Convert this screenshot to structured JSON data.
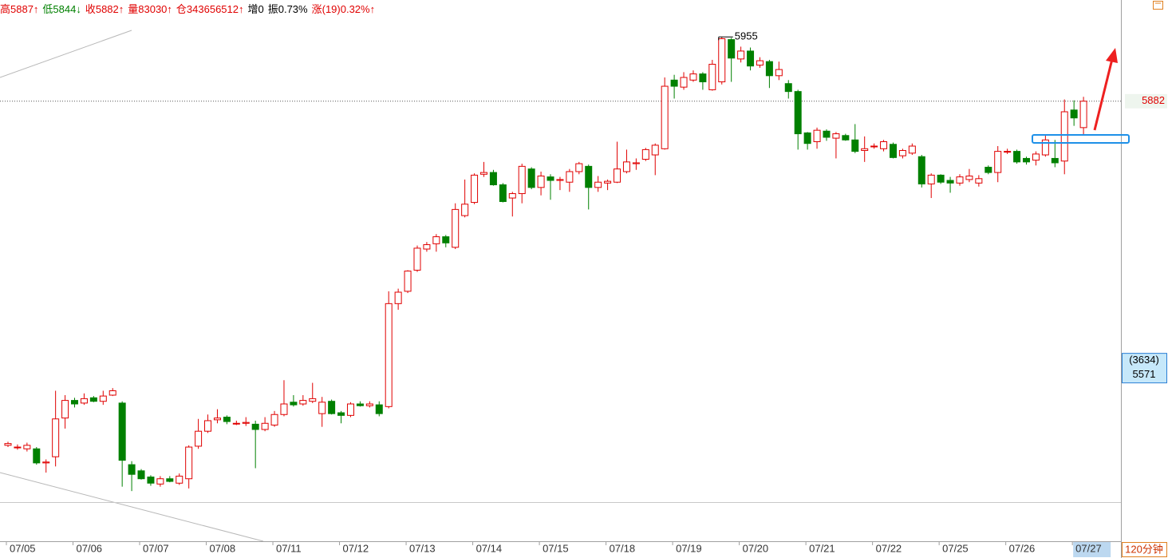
{
  "chart_data": {
    "type": "candlestick",
    "header": [
      {
        "text": "高5887↑",
        "color": "#e00000"
      },
      {
        "text": "低5844↓",
        "color": "#008000"
      },
      {
        "text": "收5882↑",
        "color": "#e00000"
      },
      {
        "text": "量83030↑",
        "color": "#e00000"
      },
      {
        "text": "仓343656512↑",
        "color": "#e00000"
      },
      {
        "text": "增0",
        "color": "#000000"
      },
      {
        "text": "振0.73%",
        "color": "#000000"
      },
      {
        "text": "涨(19)0.32%↑",
        "color": "#e00000"
      }
    ],
    "period_label": "120分钟",
    "up_color": "#e00000",
    "down_color": "#008000",
    "ylim": [
      5382,
      5997
    ],
    "last_price": 5882,
    "cursor_box": {
      "count_label": "(3634)",
      "price": 5571
    },
    "level_line": 5426,
    "categories": [
      "07/05",
      null,
      null,
      null,
      null,
      null,
      null,
      "07/06",
      null,
      null,
      null,
      null,
      null,
      null,
      "07/07",
      null,
      null,
      null,
      null,
      null,
      null,
      "07/08",
      null,
      null,
      null,
      null,
      null,
      null,
      "07/11",
      null,
      null,
      null,
      null,
      null,
      null,
      "07/12",
      null,
      null,
      null,
      null,
      null,
      null,
      "07/13",
      null,
      null,
      null,
      null,
      null,
      null,
      "07/14",
      null,
      null,
      null,
      null,
      null,
      null,
      "07/15",
      null,
      null,
      null,
      null,
      null,
      null,
      "07/18",
      null,
      null,
      null,
      null,
      null,
      null,
      "07/19",
      null,
      null,
      null,
      null,
      null,
      null,
      "07/20",
      null,
      null,
      null,
      null,
      null,
      null,
      "07/21",
      null,
      null,
      null,
      null,
      null,
      null,
      "07/22",
      null,
      null,
      null,
      null,
      null,
      null,
      "07/25",
      null,
      null,
      null,
      null,
      null,
      null,
      "07/26",
      null,
      null,
      null,
      null,
      null,
      null,
      "07/27",
      null
    ],
    "candles": [
      [
        5491,
        5495,
        5489,
        5493
      ],
      [
        5489,
        5492,
        5486,
        5489
      ],
      [
        5487,
        5494,
        5484,
        5491
      ],
      [
        5487,
        5489,
        5469,
        5471
      ],
      [
        5471,
        5475,
        5460,
        5472
      ],
      [
        5478,
        5553,
        5467,
        5521
      ],
      [
        5522,
        5548,
        5510,
        5542
      ],
      [
        5542,
        5545,
        5534,
        5538
      ],
      [
        5539,
        5550,
        5537,
        5544
      ],
      [
        5545,
        5547,
        5540,
        5541
      ],
      [
        5541,
        5553,
        5537,
        5547
      ],
      [
        5548,
        5556,
        5547,
        5553
      ],
      [
        5539,
        5541,
        5444,
        5474
      ],
      [
        5469,
        5473,
        5439,
        5458
      ],
      [
        5462,
        5464,
        5452,
        5453
      ],
      [
        5455,
        5457,
        5445,
        5448
      ],
      [
        5447,
        5456,
        5444,
        5453
      ],
      [
        5453,
        5456,
        5449,
        5450
      ],
      [
        5448,
        5459,
        5446,
        5456
      ],
      [
        5453,
        5491,
        5442,
        5489
      ],
      [
        5490,
        5521,
        5487,
        5507
      ],
      [
        5507,
        5526,
        5505,
        5519
      ],
      [
        5520,
        5532,
        5516,
        5522
      ],
      [
        5523,
        5525,
        5515,
        5518
      ],
      [
        5516,
        5519,
        5514,
        5516
      ],
      [
        5516,
        5523,
        5513,
        5517
      ],
      [
        5515,
        5519,
        5465,
        5509
      ],
      [
        5509,
        5523,
        5507,
        5516
      ],
      [
        5514,
        5530,
        5512,
        5526
      ],
      [
        5526,
        5565,
        5524,
        5538
      ],
      [
        5540,
        5548,
        5535,
        5537
      ],
      [
        5538,
        5548,
        5536,
        5542
      ],
      [
        5541,
        5562,
        5539,
        5544
      ],
      [
        5527,
        5546,
        5512,
        5540
      ],
      [
        5541,
        5543,
        5526,
        5527
      ],
      [
        5528,
        5530,
        5516,
        5525
      ],
      [
        5525,
        5540,
        5523,
        5538
      ],
      [
        5538,
        5541,
        5535,
        5536
      ],
      [
        5536,
        5541,
        5534,
        5538
      ],
      [
        5537,
        5541,
        5524,
        5527
      ],
      [
        5535,
        5666,
        5533,
        5652
      ],
      [
        5652,
        5669,
        5645,
        5665
      ],
      [
        5666,
        5690,
        5664,
        5689
      ],
      [
        5690,
        5718,
        5688,
        5715
      ],
      [
        5714,
        5722,
        5711,
        5719
      ],
      [
        5720,
        5731,
        5711,
        5728
      ],
      [
        5728,
        5730,
        5716,
        5721
      ],
      [
        5716,
        5766,
        5714,
        5759
      ],
      [
        5752,
        5793,
        5750,
        5765
      ],
      [
        5767,
        5800,
        5765,
        5798
      ],
      [
        5799,
        5813,
        5796,
        5801
      ],
      [
        5801,
        5804,
        5786,
        5787
      ],
      [
        5787,
        5789,
        5767,
        5768
      ],
      [
        5772,
        5779,
        5751,
        5777
      ],
      [
        5777,
        5811,
        5766,
        5808
      ],
      [
        5805,
        5807,
        5782,
        5784
      ],
      [
        5784,
        5802,
        5775,
        5797
      ],
      [
        5796,
        5799,
        5770,
        5792
      ],
      [
        5792,
        5796,
        5781,
        5793
      ],
      [
        5790,
        5805,
        5779,
        5802
      ],
      [
        5802,
        5813,
        5799,
        5811
      ],
      [
        5808,
        5810,
        5759,
        5784
      ],
      [
        5784,
        5797,
        5779,
        5790
      ],
      [
        5789,
        5793,
        5781,
        5791
      ],
      [
        5790,
        5836,
        5789,
        5805
      ],
      [
        5802,
        5827,
        5800,
        5813
      ],
      [
        5811,
        5817,
        5804,
        5812
      ],
      [
        5816,
        5829,
        5814,
        5827
      ],
      [
        5821,
        5834,
        5798,
        5832
      ],
      [
        5828,
        5909,
        5827,
        5899
      ],
      [
        5906,
        5912,
        5885,
        5899
      ],
      [
        5898,
        5915,
        5895,
        5909
      ],
      [
        5906,
        5917,
        5904,
        5913
      ],
      [
        5913,
        5915,
        5895,
        5904
      ],
      [
        5895,
        5929,
        5894,
        5924
      ],
      [
        5904,
        5955,
        5901,
        5953
      ],
      [
        5952,
        5954,
        5904,
        5931
      ],
      [
        5930,
        5944,
        5926,
        5939
      ],
      [
        5939,
        5943,
        5917,
        5922
      ],
      [
        5923,
        5932,
        5920,
        5928
      ],
      [
        5927,
        5929,
        5897,
        5911
      ],
      [
        5911,
        5927,
        5906,
        5918
      ],
      [
        5902,
        5906,
        5885,
        5893
      ],
      [
        5893,
        5895,
        5827,
        5845
      ],
      [
        5846,
        5847,
        5827,
        5834
      ],
      [
        5836,
        5852,
        5828,
        5849
      ],
      [
        5848,
        5850,
        5837,
        5841
      ],
      [
        5840,
        5847,
        5817,
        5845
      ],
      [
        5843,
        5845,
        5837,
        5838
      ],
      [
        5838,
        5856,
        5823,
        5825
      ],
      [
        5826,
        5842,
        5813,
        5828
      ],
      [
        5831,
        5834,
        5828,
        5831
      ],
      [
        5828,
        5838,
        5825,
        5836
      ],
      [
        5833,
        5835,
        5817,
        5818
      ],
      [
        5820,
        5828,
        5817,
        5826
      ],
      [
        5823,
        5834,
        5821,
        5831
      ],
      [
        5819,
        5821,
        5784,
        5788
      ],
      [
        5788,
        5800,
        5772,
        5798
      ],
      [
        5798,
        5799,
        5788,
        5790
      ],
      [
        5792,
        5796,
        5778,
        5789
      ],
      [
        5789,
        5799,
        5786,
        5796
      ],
      [
        5793,
        5805,
        5790,
        5797
      ],
      [
        5789,
        5798,
        5785,
        5794
      ],
      [
        5807,
        5809,
        5799,
        5801
      ],
      [
        5801,
        5831,
        5790,
        5825
      ],
      [
        5825,
        5828,
        5822,
        5825
      ],
      [
        5825,
        5827,
        5811,
        5813
      ],
      [
        5817,
        5819,
        5810,
        5813
      ],
      [
        5815,
        5825,
        5809,
        5822
      ],
      [
        5821,
        5843,
        5819,
        5838
      ],
      [
        5817,
        5838,
        5807,
        5812
      ],
      [
        5814,
        5884,
        5799,
        5870
      ],
      [
        5872,
        5883,
        5854,
        5863
      ],
      [
        5852,
        5887,
        5844,
        5882
      ]
    ]
  }
}
